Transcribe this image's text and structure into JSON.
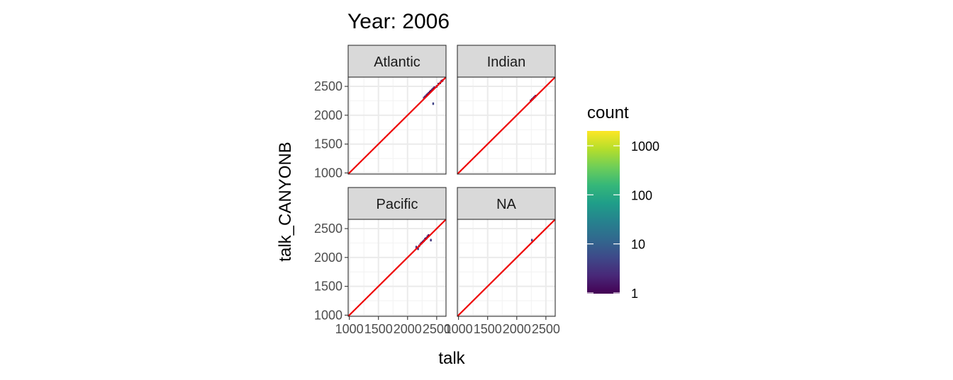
{
  "chart_data": {
    "type": "heatmap",
    "title": "Year: 2006",
    "xlabel": "talk",
    "ylabel": "talk_CANYONB",
    "xlim": [
      980,
      2660
    ],
    "ylim": [
      980,
      2660
    ],
    "x_ticks": [
      1000,
      1500,
      2000,
      2500
    ],
    "y_ticks": [
      1000,
      1500,
      2000,
      2500
    ],
    "x_tick_labels": [
      "1000",
      "1500",
      "2000",
      "2500"
    ],
    "y_tick_labels": [
      "1000",
      "1500",
      "2000",
      "2500"
    ],
    "grid": true,
    "reference_line": {
      "slope": 1,
      "intercept": 0,
      "color": "#ee0000"
    },
    "panels": [
      {
        "name": "Atlantic",
        "bins": [
          {
            "x": 2280,
            "y": 2300,
            "count": 3
          },
          {
            "x": 2300,
            "y": 2320,
            "count": 2
          },
          {
            "x": 2320,
            "y": 2340,
            "count": 2
          },
          {
            "x": 2340,
            "y": 2360,
            "count": 1
          },
          {
            "x": 2360,
            "y": 2380,
            "count": 2
          },
          {
            "x": 2380,
            "y": 2400,
            "count": 1
          },
          {
            "x": 2400,
            "y": 2420,
            "count": 1
          },
          {
            "x": 2420,
            "y": 2440,
            "count": 2
          },
          {
            "x": 2440,
            "y": 2460,
            "count": 1
          },
          {
            "x": 2460,
            "y": 2480,
            "count": 2
          },
          {
            "x": 2500,
            "y": 2500,
            "count": 1
          },
          {
            "x": 2530,
            "y": 2540,
            "count": 1
          },
          {
            "x": 2560,
            "y": 2560,
            "count": 1
          },
          {
            "x": 2580,
            "y": 2590,
            "count": 2
          },
          {
            "x": 2600,
            "y": 2600,
            "count": 1
          },
          {
            "x": 2440,
            "y": 2200,
            "count": 4
          }
        ]
      },
      {
        "name": "Indian",
        "bins": [
          {
            "x": 2240,
            "y": 2250,
            "count": 1
          },
          {
            "x": 2260,
            "y": 2270,
            "count": 1
          },
          {
            "x": 2280,
            "y": 2290,
            "count": 1
          },
          {
            "x": 2300,
            "y": 2310,
            "count": 1
          },
          {
            "x": 2320,
            "y": 2330,
            "count": 1
          }
        ]
      },
      {
        "name": "Pacific",
        "bins": [
          {
            "x": 2150,
            "y": 2180,
            "count": 3
          },
          {
            "x": 2180,
            "y": 2150,
            "count": 2
          },
          {
            "x": 2200,
            "y": 2200,
            "count": 1
          },
          {
            "x": 2220,
            "y": 2230,
            "count": 2
          },
          {
            "x": 2240,
            "y": 2250,
            "count": 1
          },
          {
            "x": 2260,
            "y": 2270,
            "count": 2
          },
          {
            "x": 2280,
            "y": 2290,
            "count": 1
          },
          {
            "x": 2300,
            "y": 2320,
            "count": 2
          },
          {
            "x": 2320,
            "y": 2330,
            "count": 1
          },
          {
            "x": 2340,
            "y": 2360,
            "count": 2
          },
          {
            "x": 2360,
            "y": 2380,
            "count": 1
          },
          {
            "x": 2400,
            "y": 2300,
            "count": 3
          }
        ]
      },
      {
        "name": "NA",
        "bins": [
          {
            "x": 2260,
            "y": 2300,
            "count": 4
          }
        ]
      }
    ],
    "legend": {
      "title": "count",
      "scale": "log10",
      "breaks": [
        1,
        10,
        100,
        1000
      ],
      "break_labels": [
        "1",
        "10",
        "100",
        "1000"
      ],
      "colors": [
        "#440154",
        "#482878",
        "#3e4989",
        "#31688e",
        "#26828e",
        "#1f9e89",
        "#35b779",
        "#6ece58",
        "#b5de2b",
        "#fde725"
      ]
    }
  }
}
